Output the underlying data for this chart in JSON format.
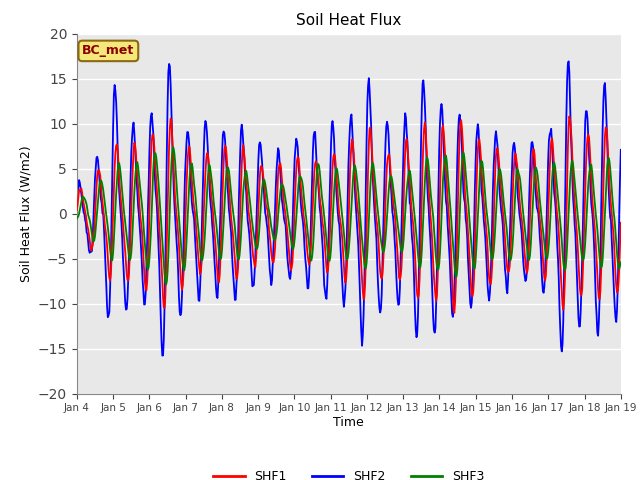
{
  "title": "Soil Heat Flux",
  "xlabel": "Time",
  "ylabel": "Soil Heat Flux (W/m2)",
  "ylim": [
    -20,
    20
  ],
  "yticks": [
    -20,
    -15,
    -10,
    -5,
    0,
    5,
    10,
    15,
    20
  ],
  "bg_color": "#e8e8e8",
  "line_colors": {
    "SHF1": "red",
    "SHF2": "blue",
    "SHF3": "green"
  },
  "line_width": 1.3,
  "annotation_text": "BC_met",
  "annotation_bg": "#f5e87a",
  "annotation_border": "#8B4513",
  "xtick_labels": [
    "Jan 4",
    "Jan 5",
    "Jan 6",
    "Jan 7",
    "Jan 8",
    "Jan 9",
    "Jan 10",
    "Jan 11",
    "Jan 12",
    "Jan 13",
    "Jan 14",
    "Jan 15",
    "Jan 16",
    "Jan 17",
    "Jan 18",
    "Jan 19"
  ],
  "xtick_labels_compact": [
    "Jan 4",
    "Jan 5",
    "Jan 6",
    "Jan 7",
    "Jan 8",
    "Jan 9",
    "Jan 10",
    "Jan 11",
    "Jan 12",
    "Jan 13",
    "Jan 14",
    "Jan 15",
    "Jan 16",
    "Jan 17",
    "Jan 18",
    "Jan 19"
  ],
  "n_per_day": 48,
  "n_days": 15
}
